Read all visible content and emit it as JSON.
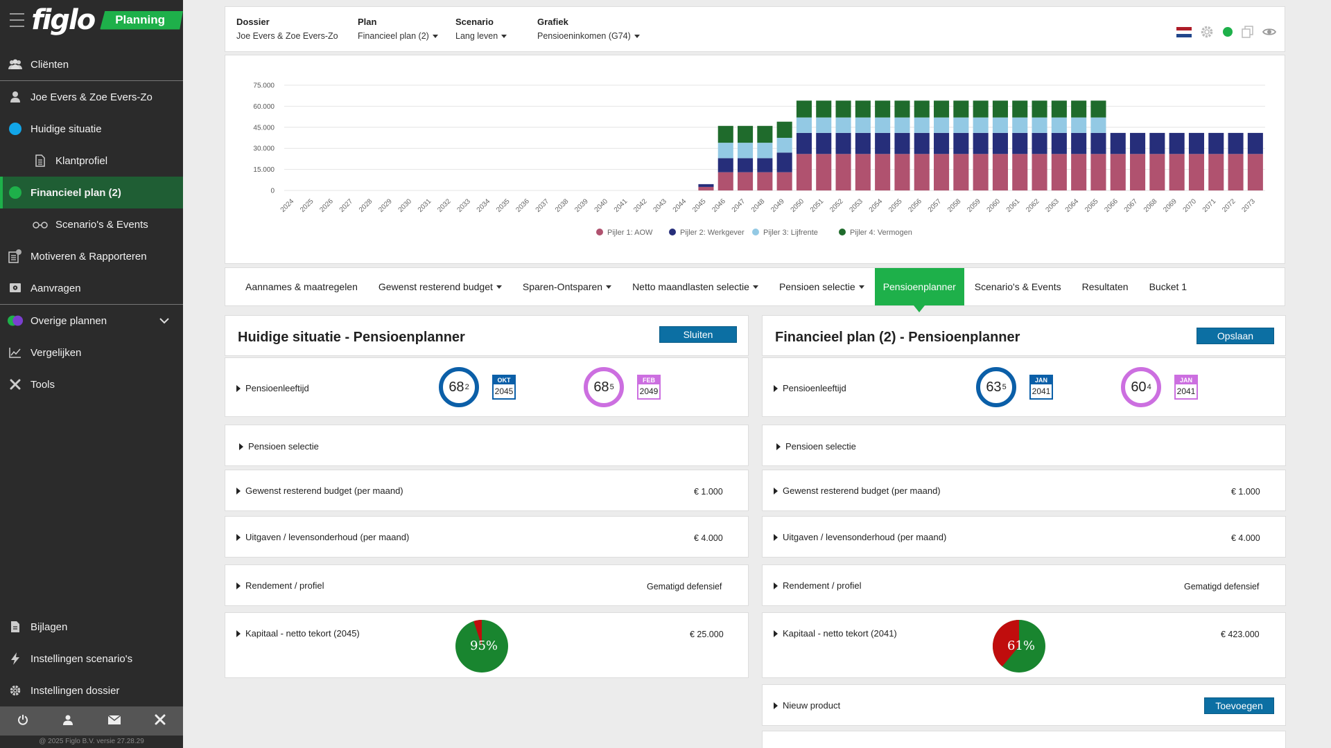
{
  "app": {
    "logo": "figlo",
    "module": "Planning",
    "copyright": "@ 2025 Figlo B.V. versie 27.28.29"
  },
  "sidebar": {
    "items": [
      {
        "label": "Cliënten",
        "icon": "users-icon"
      },
      {
        "label": "Joe Evers & Zoe Evers-Zo",
        "icon": "user-icon"
      },
      {
        "label": "Huidige situatie",
        "icon": "blue-dot"
      },
      {
        "label": "Klantprofiel",
        "icon": "document-icon"
      },
      {
        "label": "Financieel plan (2)",
        "icon": "green-dot"
      },
      {
        "label": "Scenario's & Events",
        "icon": "glasses-icon"
      },
      {
        "label": "Motiveren & Rapporteren",
        "icon": "report-icon"
      },
      {
        "label": "Aanvragen",
        "icon": "safe-icon"
      },
      {
        "label": "Overige plannen",
        "icon": "multi-dot"
      },
      {
        "label": "Vergelijken",
        "icon": "chart-line-icon"
      },
      {
        "label": "Tools",
        "icon": "tools-icon"
      }
    ],
    "bottom_items": [
      {
        "label": "Bijlagen",
        "icon": "file-icon"
      },
      {
        "label": "Instellingen scenario's",
        "icon": "bolt-icon"
      },
      {
        "label": "Instellingen dossier",
        "icon": "gear-icon"
      }
    ]
  },
  "topbar": {
    "dossier_label": "Dossier",
    "dossier_value": "Joe Evers & Zoe Evers-Zo",
    "plan_label": "Plan",
    "plan_value": "Financieel plan (2)",
    "scenario_label": "Scenario",
    "scenario_value": "Lang leven",
    "grafiek_label": "Grafiek",
    "grafiek_value": "Pensioeninkomen (G74)"
  },
  "chart_data": {
    "type": "bar",
    "stacked": true,
    "ylim": [
      0,
      75000
    ],
    "yticks": [
      "75.000",
      "60.000",
      "45.000",
      "30.000",
      "15.000",
      "0"
    ],
    "categories": [
      "2024",
      "2025",
      "2026",
      "2027",
      "2028",
      "2029",
      "2030",
      "2031",
      "2032",
      "2033",
      "2034",
      "2035",
      "2036",
      "2037",
      "2038",
      "2039",
      "2040",
      "2041",
      "2042",
      "2043",
      "2044",
      "2045",
      "2046",
      "2047",
      "2048",
      "2049",
      "2050",
      "2051",
      "2052",
      "2053",
      "2054",
      "2055",
      "2056",
      "2057",
      "2058",
      "2059",
      "2060",
      "2061",
      "2062",
      "2063",
      "2064",
      "2065",
      "2066",
      "2067",
      "2068",
      "2069",
      "2070",
      "2071",
      "2072",
      "2073"
    ],
    "series": [
      {
        "name": "Pijler 1: AOW",
        "color": "#b0526f",
        "values": [
          0,
          0,
          0,
          0,
          0,
          0,
          0,
          0,
          0,
          0,
          0,
          0,
          0,
          0,
          0,
          0,
          0,
          0,
          0,
          0,
          0,
          2500,
          13000,
          13000,
          13000,
          13000,
          26000,
          26000,
          26000,
          26000,
          26000,
          26000,
          26000,
          26000,
          26000,
          26000,
          26000,
          26000,
          26000,
          26000,
          26000,
          26000,
          26000,
          26000,
          26000,
          26000,
          26000,
          26000,
          26000,
          26000
        ]
      },
      {
        "name": "Pijler 2: Werkgever",
        "color": "#262e7a",
        "values": [
          0,
          0,
          0,
          0,
          0,
          0,
          0,
          0,
          0,
          0,
          0,
          0,
          0,
          0,
          0,
          0,
          0,
          0,
          0,
          0,
          0,
          2000,
          10000,
          10000,
          10000,
          14000,
          15000,
          15000,
          15000,
          15000,
          15000,
          15000,
          15000,
          15000,
          15000,
          15000,
          15000,
          15000,
          15000,
          15000,
          15000,
          15000,
          15000,
          15000,
          15000,
          15000,
          15000,
          15000,
          15000,
          15000
        ]
      },
      {
        "name": "Pijler 3: Lijfrente",
        "color": "#93c9e4",
        "values": [
          0,
          0,
          0,
          0,
          0,
          0,
          0,
          0,
          0,
          0,
          0,
          0,
          0,
          0,
          0,
          0,
          0,
          0,
          0,
          0,
          0,
          0,
          11000,
          11000,
          11000,
          10500,
          11000,
          11000,
          11000,
          11000,
          11000,
          11000,
          11000,
          11000,
          11000,
          11000,
          11000,
          11000,
          11000,
          11000,
          11000,
          11000,
          0,
          0,
          0,
          0,
          0,
          0,
          0,
          0
        ]
      },
      {
        "name": "Pijler 4: Vermogen",
        "color": "#1f6b2c",
        "values": [
          0,
          0,
          0,
          0,
          0,
          0,
          0,
          0,
          0,
          0,
          0,
          0,
          0,
          0,
          0,
          0,
          0,
          0,
          0,
          0,
          0,
          0,
          12000,
          12000,
          12000,
          11500,
          12000,
          12000,
          12000,
          12000,
          12000,
          12000,
          12000,
          12000,
          12000,
          12000,
          12000,
          12000,
          12000,
          12000,
          12000,
          12000,
          0,
          0,
          0,
          0,
          0,
          0,
          0,
          0
        ]
      }
    ]
  },
  "tabs": [
    {
      "label": "Aannames & maatregelen",
      "dropdown": false
    },
    {
      "label": "Gewenst resterend budget",
      "dropdown": true
    },
    {
      "label": "Sparen-Ontsparen",
      "dropdown": true
    },
    {
      "label": "Netto maandlasten selectie",
      "dropdown": true
    },
    {
      "label": "Pensioen selectie",
      "dropdown": true
    },
    {
      "label": "Pensioenplanner",
      "dropdown": false,
      "active": true
    },
    {
      "label": "Scenario's & Events",
      "dropdown": false
    },
    {
      "label": "Resultaten",
      "dropdown": false
    },
    {
      "label": "Bucket 1",
      "dropdown": false
    }
  ],
  "left": {
    "title": "Huidige situatie - Pensioenplanner",
    "button": "Sluiten",
    "pensioenleeftijd_label": "Pensioenleeftijd",
    "age1": "68",
    "age1_sup": "2",
    "cal1_month": "OKT",
    "cal1_year": "2045",
    "age2": "68",
    "age2_sup": "5",
    "cal2_month": "FEB",
    "cal2_year": "2049",
    "pensioen_selectie": "Pensioen selectie",
    "budget_label": "Gewenst resterend budget (per maand)",
    "budget_value": "€ 1.000",
    "uitgaven_label": "Uitgaven / levensonderhoud (per maand)",
    "uitgaven_value": "€ 4.000",
    "rendement_label": "Rendement / profiel",
    "rendement_value": "Gematigd defensief",
    "kapitaal_label": "Kapitaal - netto tekort (2045)",
    "kapitaal_value": "€ 25.000",
    "pie_label": "95%",
    "pie_percent": 95
  },
  "right": {
    "title": "Financieel plan (2) - Pensioenplanner",
    "button": "Opslaan",
    "pensioenleeftijd_label": "Pensioenleeftijd",
    "age1": "63",
    "age1_sup": "5",
    "cal1_month": "JAN",
    "cal1_year": "2041",
    "age2": "60",
    "age2_sup": "4",
    "cal2_month": "JAN",
    "cal2_year": "2041",
    "pensioen_selectie": "Pensioen selectie",
    "budget_label": "Gewenst resterend budget (per maand)",
    "budget_value": "€ 1.000",
    "uitgaven_label": "Uitgaven / levensonderhoud (per maand)",
    "uitgaven_value": "€ 4.000",
    "rendement_label": "Rendement / profiel",
    "rendement_value": "Gematigd defensief",
    "kapitaal_label": "Kapitaal - netto tekort (2041)",
    "kapitaal_value": "€ 423.000",
    "pie_label": "61%",
    "pie_percent": 61,
    "nieuw_product_label": "Nieuw product",
    "toevoegen_button": "Toevoegen"
  },
  "colors": {
    "accent": "#1eb04a",
    "blue_button": "#0c6fa3",
    "ring_blue": "#0b5fa8",
    "ring_purple": "#cc6fe0",
    "pie_green": "#19852f",
    "pie_red": "#c00d0d"
  }
}
